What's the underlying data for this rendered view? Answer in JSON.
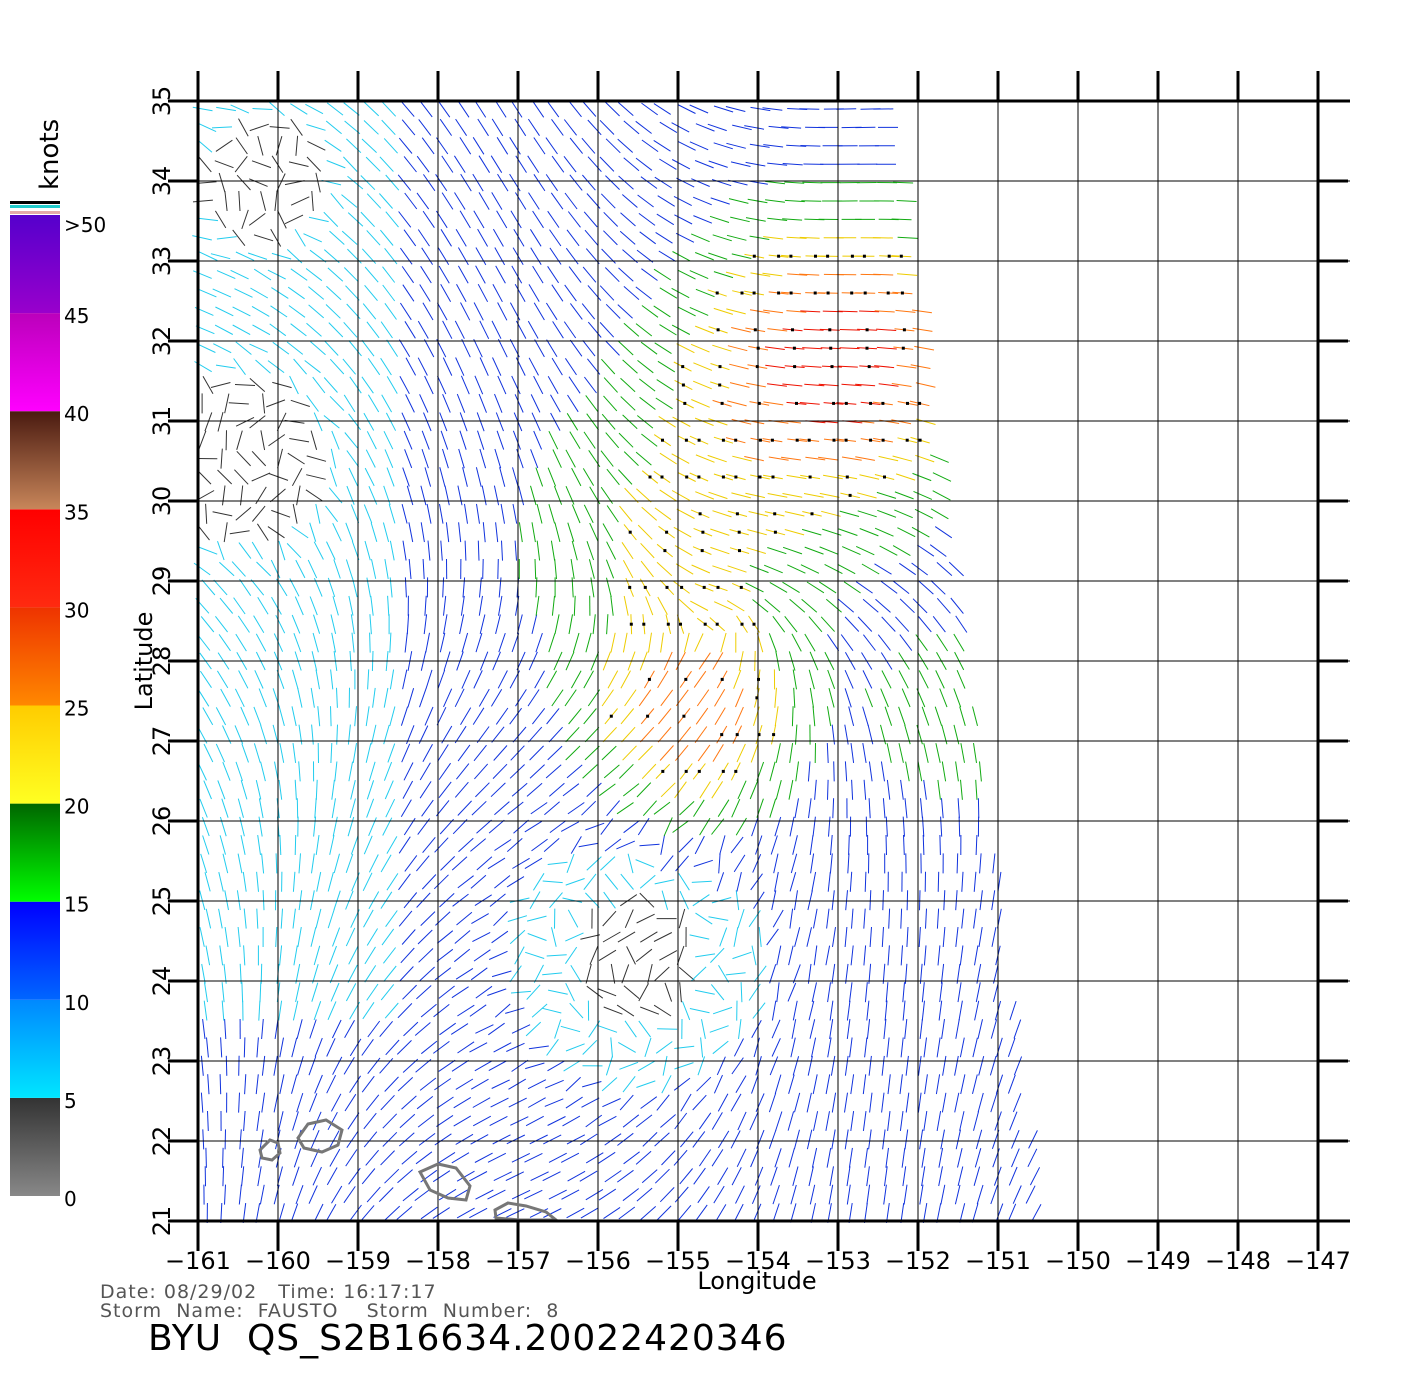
{
  "colorbar": {
    "title": "knots",
    "labels": [
      ">50",
      "45",
      "40",
      "35",
      "30",
      "25",
      "20",
      "15",
      "10",
      "5",
      "0"
    ],
    "bands": [
      {
        "from": 0,
        "to": 5,
        "top": "#333333",
        "bottom": "#888888"
      },
      {
        "from": 5,
        "to": 10,
        "top": "#0088ff",
        "bottom": "#00e6ff"
      },
      {
        "from": 10,
        "to": 15,
        "top": "#0000ff",
        "bottom": "#0066ff"
      },
      {
        "from": 15,
        "to": 20,
        "top": "#006600",
        "bottom": "#00ff00"
      },
      {
        "from": 20,
        "to": 25,
        "top": "#ffcc00",
        "bottom": "#ffff22"
      },
      {
        "from": 25,
        "to": 30,
        "top": "#ee3300",
        "bottom": "#ff8800"
      },
      {
        "from": 30,
        "to": 35,
        "top": "#ff0000",
        "bottom": "#ff2a10"
      },
      {
        "from": 35,
        "to": 40,
        "top": "#4a1a10",
        "bottom": "#c8865a"
      },
      {
        "from": 40,
        "to": 45,
        "top": "#bb00bb",
        "bottom": "#ff00ff"
      },
      {
        "from": 45,
        "to": 50,
        "top": "#5500cc",
        "bottom": "#9900cc"
      }
    ]
  },
  "map": {
    "xlabel": "Longitude",
    "ylabel": "Latitude",
    "lon_range": [
      -161,
      -147
    ],
    "lat_range": [
      21,
      35
    ],
    "lon_ticks": [
      "−161",
      "−160",
      "−159",
      "−158",
      "−157",
      "−156",
      "−155",
      "−154",
      "−153",
      "−152",
      "−151",
      "−150",
      "−149",
      "−148",
      "−147"
    ],
    "lat_ticks": [
      "21",
      "22",
      "23",
      "24",
      "25",
      "26",
      "27",
      "28",
      "29",
      "30",
      "31",
      "32",
      "33",
      "34",
      "35"
    ],
    "swath_corners": [
      [
        -161,
        35
      ],
      [
        -152.3,
        35
      ],
      [
        -150.4,
        21
      ],
      [
        -161,
        21
      ]
    ]
  },
  "footer": {
    "date_line": "Date: 08/29/02   Time: 16:17:17",
    "storm_line": "Storm  Name:  FAUSTO    Storm  Number:  8",
    "title": "BYU  QS_S2B16634.20022420346"
  }
}
